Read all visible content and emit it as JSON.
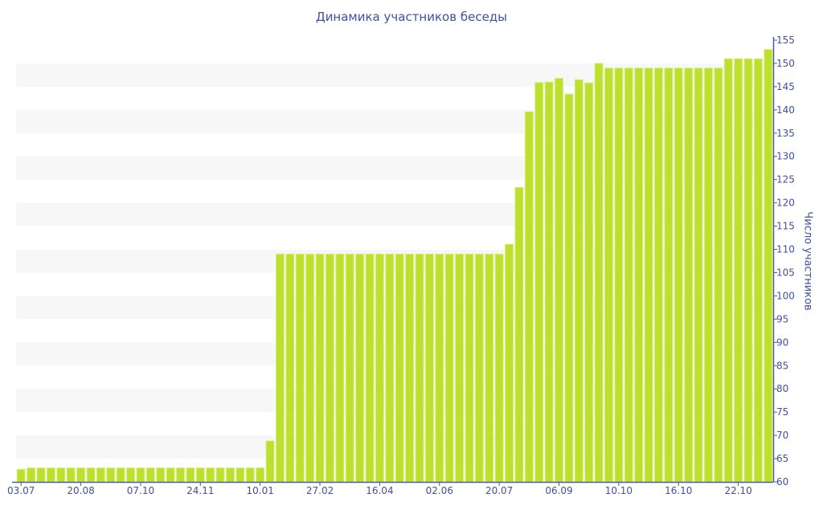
{
  "chart_data": {
    "type": "bar",
    "title": "Динамика участников беседы",
    "xlabel": "",
    "ylabel": "Число участников",
    "ylim": [
      60,
      155
    ],
    "y_ticks": [
      60,
      65,
      70,
      75,
      80,
      85,
      90,
      95,
      100,
      105,
      110,
      115,
      120,
      125,
      130,
      135,
      140,
      145,
      150,
      155
    ],
    "x_tick_labels": [
      "03.07",
      "20.08",
      "07.10",
      "24.11",
      "10.01",
      "27.02",
      "16.04",
      "02.06",
      "20.07",
      "06.09",
      "10.10",
      "16.10",
      "22.10"
    ],
    "x_tick_every": 6,
    "grid": "alternating horizontal bands",
    "y_axis_position": "right",
    "values": [
      62.7,
      63,
      63,
      63,
      63,
      63,
      63,
      63,
      63,
      63,
      63,
      63,
      63,
      63,
      63,
      63,
      63,
      63,
      63,
      63,
      63,
      63,
      63,
      63,
      63,
      68.8,
      109,
      109,
      109,
      109,
      109,
      109,
      109,
      109,
      109,
      109,
      109,
      109,
      109,
      109,
      109,
      109,
      109,
      109,
      109,
      109,
      109,
      109,
      109,
      111.1,
      123.3,
      139.6,
      145.9,
      146,
      146.8,
      143.4,
      146.5,
      145.8,
      150,
      149,
      149,
      149,
      149,
      149,
      149,
      149,
      149,
      149,
      149,
      149,
      149,
      151,
      151,
      151,
      151,
      153
    ],
    "colors": {
      "bar": "#bde02e",
      "bar_edge": "#d6ee7a",
      "axis": "#4a5a9e",
      "text": "#3f51a0",
      "band": "#f7f7f7"
    }
  }
}
